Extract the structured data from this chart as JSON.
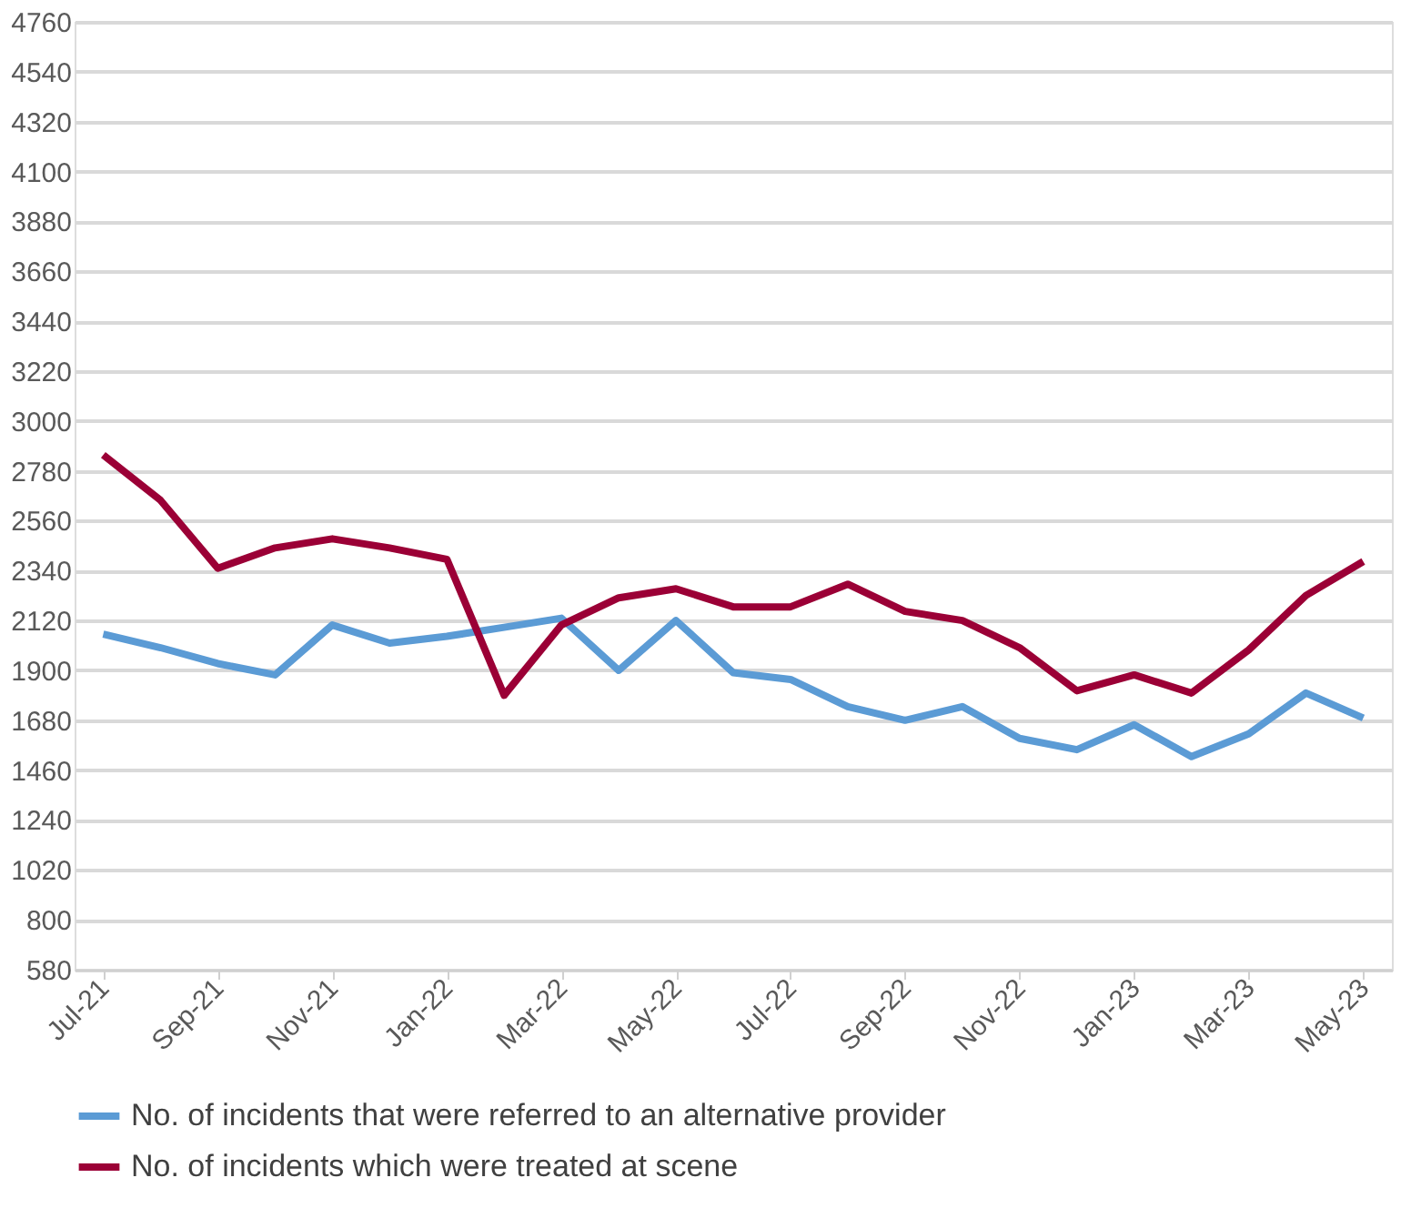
{
  "chart_data": {
    "type": "line",
    "categories": [
      "Jul-21",
      null,
      "Sep-21",
      null,
      "Nov-21",
      null,
      "Jan-22",
      null,
      "Mar-22",
      null,
      "May-22",
      null,
      "Jul-22",
      null,
      "Sep-22",
      null,
      "Nov-22",
      null,
      "Jan-23",
      null,
      "Mar-23",
      null,
      "May-23"
    ],
    "series": [
      {
        "name": "No. of incidents that were referred to an alternative provider",
        "color": "#5b9bd5",
        "values": [
          2060,
          2000,
          1930,
          1880,
          2100,
          2020,
          2050,
          2090,
          2130,
          1900,
          2120,
          1890,
          1860,
          1740,
          1680,
          1740,
          1600,
          1550,
          1660,
          1520,
          1620,
          1800,
          1690
        ]
      },
      {
        "name": "No. of incidents which were treated at scene",
        "color": "#9b0036",
        "values": [
          2850,
          2650,
          2350,
          2440,
          2480,
          2440,
          2390,
          1790,
          2100,
          2220,
          2260,
          2180,
          2180,
          2280,
          2160,
          2120,
          2000,
          1810,
          1880,
          1800,
          1990,
          2230,
          2380
        ]
      }
    ],
    "ylim": [
      580,
      4760
    ],
    "yticks": [
      580,
      800,
      1020,
      1240,
      1460,
      1680,
      1900,
      2120,
      2340,
      2560,
      2780,
      3000,
      3220,
      3440,
      3660,
      3880,
      4100,
      4320,
      4540,
      4760
    ],
    "grid": "y",
    "legend": "bottom",
    "marker": "none",
    "line_style": "solid"
  }
}
